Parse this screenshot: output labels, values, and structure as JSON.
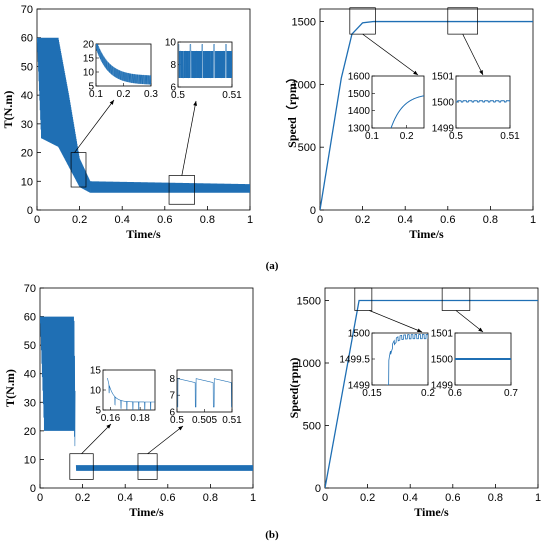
{
  "captions": [
    "(a)",
    "(b)"
  ],
  "colors": {
    "line": "#1f6fb4",
    "axis": "#000000"
  },
  "chart_data": [
    {
      "type": "line",
      "panel": "a-torque",
      "xlabel": "Time/s",
      "ylabel": "T(N.m)",
      "xlim": [
        0,
        1
      ],
      "ylim": [
        0,
        70
      ],
      "xticks": [
        "0",
        "0.2",
        "0.4",
        "0.6",
        "0.8",
        "1"
      ],
      "yticks": [
        "0",
        "10",
        "20",
        "30",
        "40",
        "50",
        "60",
        "70"
      ],
      "series": [
        {
          "envelope_upper": [
            [
              0,
              60
            ],
            [
              0.1,
              60
            ],
            [
              0.15,
              40
            ],
            [
              0.2,
              18
            ],
            [
              0.25,
              10
            ],
            [
              1,
              9
            ]
          ],
          "envelope_lower": [
            [
              0,
              60
            ],
            [
              0.02,
              25
            ],
            [
              0.1,
              22
            ],
            [
              0.15,
              15
            ],
            [
              0.2,
              8
            ],
            [
              0.25,
              6
            ],
            [
              1,
              6
            ]
          ]
        }
      ],
      "insets": [
        {
          "xlim": [
            0.1,
            0.3
          ],
          "ylim": [
            5,
            20
          ],
          "xticks": [
            "0.1",
            "0.2",
            "0.3"
          ],
          "yticks": [
            "5",
            "10",
            "15",
            "20"
          ]
        },
        {
          "xlim": [
            0.5,
            0.51
          ],
          "ylim": [
            6,
            10
          ],
          "xticks": [
            "0.5",
            "0.51"
          ],
          "yticks": [
            "6",
            "8",
            "10"
          ]
        }
      ]
    },
    {
      "type": "line",
      "panel": "a-speed",
      "xlabel": "Time/s",
      "ylabel": "Speed（rpm）",
      "xlim": [
        0,
        1
      ],
      "ylim": [
        0,
        1600
      ],
      "xticks": [
        "0",
        "0.2",
        "0.4",
        "0.6",
        "0.8",
        "1"
      ],
      "yticks": [
        "0",
        "500",
        "1000",
        "1500"
      ],
      "series": [
        {
          "points": [
            [
              0,
              0
            ],
            [
              0.1,
              1050
            ],
            [
              0.15,
              1400
            ],
            [
              0.2,
              1490
            ],
            [
              0.25,
              1500
            ],
            [
              1,
              1500
            ]
          ]
        }
      ],
      "insets": [
        {
          "xlim": [
            0.1,
            0.25
          ],
          "ylim": [
            1300,
            1600
          ],
          "xticks": [
            "0.1",
            "0.2"
          ],
          "yticks": [
            "1300",
            "1400",
            "1500",
            "1600"
          ]
        },
        {
          "xlim": [
            0.5,
            0.51
          ],
          "ylim": [
            1499,
            1501
          ],
          "xticks": [
            "0.5",
            "0.51"
          ],
          "yticks": [
            "1499",
            "1500",
            "1501"
          ]
        }
      ]
    },
    {
      "type": "line",
      "panel": "b-torque",
      "xlabel": "Time/s",
      "ylabel": "T(N.m)",
      "xlim": [
        0,
        1
      ],
      "ylim": [
        0,
        70
      ],
      "xticks": [
        "0",
        "0.2",
        "0.4",
        "0.6",
        "0.8",
        "1"
      ],
      "yticks": [
        "0",
        "10",
        "20",
        "30",
        "40",
        "50",
        "60",
        "70"
      ],
      "series": [
        {
          "envelope_upper": [
            [
              0,
              60
            ],
            [
              0.16,
              60
            ],
            [
              0.17,
              8
            ],
            [
              1,
              8
            ]
          ],
          "envelope_lower": [
            [
              0,
              60
            ],
            [
              0.02,
              20
            ],
            [
              0.16,
              20
            ],
            [
              0.17,
              6
            ],
            [
              1,
              6
            ]
          ]
        }
      ],
      "insets": [
        {
          "xlim": [
            0.155,
            0.19
          ],
          "ylim": [
            5,
            15
          ],
          "xticks": [
            "0.16",
            "0.18"
          ],
          "yticks": [
            "5",
            "10",
            "15"
          ]
        },
        {
          "xlim": [
            0.5,
            0.51
          ],
          "ylim": [
            6,
            8.5
          ],
          "xticks": [
            "0.5",
            "0.505",
            "0.51"
          ],
          "yticks": [
            "6",
            "7",
            "8"
          ]
        }
      ]
    },
    {
      "type": "line",
      "panel": "b-speed",
      "xlabel": "Time/s",
      "ylabel": "Speed(rpm)",
      "xlim": [
        0,
        1
      ],
      "ylim": [
        0,
        1600
      ],
      "xticks": [
        "0",
        "0.2",
        "0.4",
        "0.6",
        "0.8",
        "1"
      ],
      "yticks": [
        "0",
        "500",
        "1000",
        "1500"
      ],
      "series": [
        {
          "points": [
            [
              0,
              0
            ],
            [
              0.16,
              1500
            ],
            [
              1,
              1500
            ]
          ]
        }
      ],
      "insets": [
        {
          "xlim": [
            0.15,
            0.2
          ],
          "ylim": [
            1499,
            1500
          ],
          "xticks": [
            "0.15",
            "0.2"
          ],
          "yticks": [
            "1499",
            "1499.5",
            "1500"
          ]
        },
        {
          "xlim": [
            0.6,
            0.7
          ],
          "ylim": [
            1499,
            1501
          ],
          "xticks": [
            "0.6",
            "0.7"
          ],
          "yticks": [
            "1499",
            "1500",
            "1501"
          ]
        }
      ]
    }
  ]
}
